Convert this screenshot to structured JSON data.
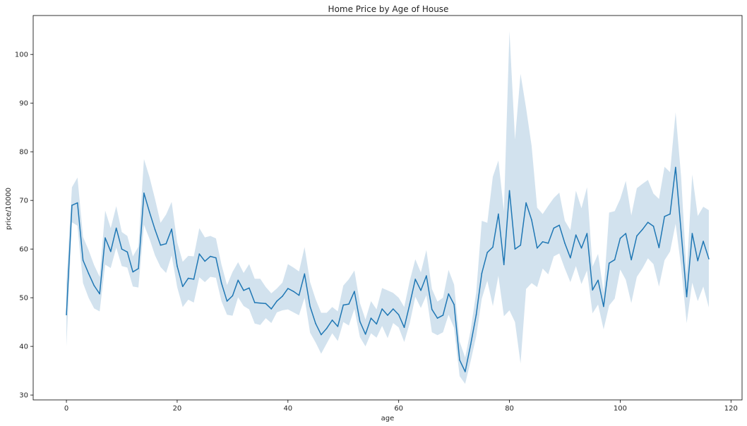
{
  "chart_data": {
    "type": "line",
    "title": "Home Price by Age of House",
    "xlabel": "age",
    "ylabel": "price/10000",
    "xlim": [
      -6,
      122
    ],
    "ylim": [
      29,
      108
    ],
    "xticks": [
      0,
      20,
      40,
      60,
      80,
      100,
      120
    ],
    "yticks": [
      30,
      40,
      50,
      60,
      70,
      80,
      90,
      100
    ],
    "grid": false,
    "colors": {
      "line": "#1f77b4",
      "band": "#a6c6dd"
    },
    "x": [
      0,
      1,
      2,
      3,
      4,
      5,
      6,
      7,
      8,
      9,
      10,
      11,
      12,
      13,
      14,
      15,
      16,
      17,
      18,
      19,
      20,
      21,
      22,
      23,
      24,
      25,
      26,
      27,
      28,
      29,
      30,
      31,
      32,
      33,
      34,
      35,
      36,
      37,
      38,
      39,
      40,
      41,
      42,
      43,
      44,
      45,
      46,
      47,
      48,
      49,
      50,
      51,
      52,
      53,
      54,
      55,
      56,
      57,
      58,
      59,
      60,
      61,
      62,
      63,
      64,
      65,
      66,
      67,
      68,
      69,
      70,
      71,
      72,
      73,
      74,
      75,
      76,
      77,
      78,
      79,
      80,
      81,
      82,
      83,
      84,
      85,
      86,
      87,
      88,
      89,
      90,
      91,
      92,
      93,
      94,
      95,
      96,
      97,
      98,
      99,
      100,
      101,
      102,
      103,
      104,
      105,
      106,
      107,
      108,
      109,
      110,
      111,
      112,
      113,
      114,
      115,
      116
    ],
    "series": [
      {
        "values": [
          46.5,
          69,
          69.5,
          57.7,
          55,
          52.5,
          50.8,
          62.3,
          59.5,
          64.3,
          60,
          59.4,
          55.3,
          56,
          71.5,
          67.6,
          64,
          60.8,
          61.1,
          64.1,
          56.5,
          52.3,
          54,
          53.8,
          59,
          57.5,
          58.5,
          58.2,
          53,
          49.3,
          50.4,
          53.6,
          51.5,
          52,
          49,
          48.9,
          48.8,
          47.7,
          49.3,
          50.3,
          51.9,
          51.3,
          50.5,
          54.9,
          48.2,
          44.7,
          42.4,
          43.7,
          45.4,
          44.1,
          48.5,
          48.7,
          51.3,
          45.1,
          42.5,
          45.8,
          44.6,
          47.7,
          46.4,
          47.7,
          46.5,
          43.9,
          48.7,
          53.8,
          51.5,
          54.5,
          47.6,
          45.8,
          46.4,
          50.8,
          48.6,
          37.2,
          34.8,
          40.4,
          46.5,
          55,
          59.3,
          60.4,
          67.2,
          56.8,
          72,
          60,
          60.8,
          69.5,
          66,
          60.2,
          61.5,
          61.2,
          64.3,
          64.9,
          61.2,
          58.2,
          62.9,
          60.2,
          63.2,
          51.6,
          53.6,
          48.2,
          57.1,
          57.8,
          62.2,
          63.2,
          57.8,
          62.7,
          64,
          65.5,
          64.7,
          60.3,
          66.7,
          67.2,
          76.8,
          63.5,
          50.2,
          63.2,
          57.6,
          61.6,
          58
        ],
        "lower": [
          40,
          65.5,
          64.8,
          53,
          50,
          47.8,
          47.2,
          56.8,
          56.1,
          60.3,
          56.5,
          56.2,
          52.3,
          52.1,
          65,
          62.1,
          58.7,
          56.3,
          55.1,
          58.7,
          52.2,
          48.1,
          49.6,
          49,
          54.2,
          53.2,
          54.3,
          54.1,
          49.3,
          46.5,
          46.3,
          50.1,
          48.3,
          47.6,
          44.7,
          44.4,
          45.8,
          44.8,
          47,
          47.4,
          47.6,
          47,
          46.4,
          50,
          42.8,
          40.8,
          38.5,
          40.6,
          42.7,
          41.1,
          45,
          44.3,
          47.7,
          41.9,
          40,
          42.7,
          41.8,
          44.2,
          41.7,
          44.8,
          43.9,
          40.9,
          44.8,
          50.2,
          47.9,
          50.5,
          42.9,
          42.3,
          42.9,
          46.5,
          43.8,
          33.9,
          32.3,
          37,
          42.1,
          49.8,
          53.5,
          48.3,
          54.5,
          46.2,
          47.4,
          45,
          36.5,
          51.8,
          53,
          52.2,
          56,
          54.8,
          58.5,
          59.1,
          56,
          53.2,
          56.5,
          52.8,
          55.6,
          46.8,
          48.6,
          43.5,
          48.4,
          49.8,
          55.8,
          53.7,
          48.9,
          54.3,
          56,
          58.1,
          56.9,
          52.3,
          57.7,
          59.5,
          65.2,
          56.3,
          44.8,
          53.1,
          49.3,
          52.3,
          48
        ],
        "upper": [
          53,
          72.7,
          74.7,
          62.5,
          59.8,
          56.7,
          54.3,
          67.9,
          64.3,
          68.8,
          63.5,
          62.7,
          58.5,
          60.5,
          78.5,
          74.8,
          70.3,
          65.4,
          67.1,
          69.7,
          61.4,
          57.4,
          58.6,
          58.5,
          64.3,
          62.4,
          62.7,
          62.2,
          56.8,
          52.6,
          55.3,
          57.3,
          55.1,
          56.9,
          53.9,
          53.9,
          52.2,
          50.9,
          51.9,
          53.1,
          56.9,
          56.2,
          55.4,
          60.4,
          53.2,
          49.7,
          46.9,
          46.9,
          48.1,
          47.2,
          52.5,
          53.8,
          55.6,
          48.9,
          45.5,
          49.3,
          47.6,
          52,
          51.5,
          51,
          50,
          48.1,
          53.5,
          57.9,
          55.2,
          59.8,
          51.8,
          49.2,
          50,
          55.7,
          52.7,
          41,
          37.7,
          43.4,
          51.1,
          65.8,
          65.4,
          74.9,
          78.2,
          67.8,
          104.8,
          82.5,
          96,
          89,
          81.2,
          68.5,
          67.2,
          68.9,
          70.5,
          71.6,
          65.8,
          63.9,
          72,
          68.4,
          72.7,
          56.4,
          59,
          51.1,
          67.5,
          67.8,
          70.3,
          74,
          66.9,
          72.5,
          73.4,
          74.2,
          71.4,
          70.3,
          76.9,
          75.8,
          88.1,
          74.8,
          54.8,
          75.3,
          66.8,
          68.7,
          68
        ]
      }
    ]
  }
}
